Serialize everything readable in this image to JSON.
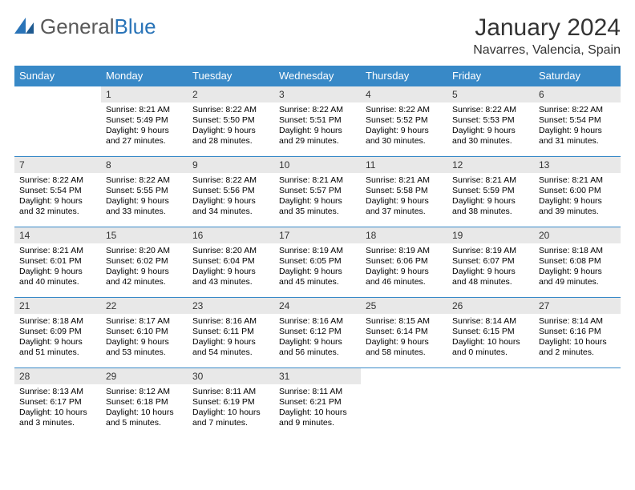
{
  "brand": {
    "part1": "General",
    "part2": "Blue"
  },
  "title": "January 2024",
  "location": "Navarres, Valencia, Spain",
  "header_bg": "#3889c7",
  "daynum_bg": "#e8e8e8",
  "border_color": "#3889c7",
  "weekdays": [
    "Sunday",
    "Monday",
    "Tuesday",
    "Wednesday",
    "Thursday",
    "Friday",
    "Saturday"
  ],
  "weeks": [
    [
      {
        "n": "",
        "sr": "",
        "ss": "",
        "dl": ""
      },
      {
        "n": "1",
        "sr": "Sunrise: 8:21 AM",
        "ss": "Sunset: 5:49 PM",
        "dl": "Daylight: 9 hours and 27 minutes."
      },
      {
        "n": "2",
        "sr": "Sunrise: 8:22 AM",
        "ss": "Sunset: 5:50 PM",
        "dl": "Daylight: 9 hours and 28 minutes."
      },
      {
        "n": "3",
        "sr": "Sunrise: 8:22 AM",
        "ss": "Sunset: 5:51 PM",
        "dl": "Daylight: 9 hours and 29 minutes."
      },
      {
        "n": "4",
        "sr": "Sunrise: 8:22 AM",
        "ss": "Sunset: 5:52 PM",
        "dl": "Daylight: 9 hours and 30 minutes."
      },
      {
        "n": "5",
        "sr": "Sunrise: 8:22 AM",
        "ss": "Sunset: 5:53 PM",
        "dl": "Daylight: 9 hours and 30 minutes."
      },
      {
        "n": "6",
        "sr": "Sunrise: 8:22 AM",
        "ss": "Sunset: 5:54 PM",
        "dl": "Daylight: 9 hours and 31 minutes."
      }
    ],
    [
      {
        "n": "7",
        "sr": "Sunrise: 8:22 AM",
        "ss": "Sunset: 5:54 PM",
        "dl": "Daylight: 9 hours and 32 minutes."
      },
      {
        "n": "8",
        "sr": "Sunrise: 8:22 AM",
        "ss": "Sunset: 5:55 PM",
        "dl": "Daylight: 9 hours and 33 minutes."
      },
      {
        "n": "9",
        "sr": "Sunrise: 8:22 AM",
        "ss": "Sunset: 5:56 PM",
        "dl": "Daylight: 9 hours and 34 minutes."
      },
      {
        "n": "10",
        "sr": "Sunrise: 8:21 AM",
        "ss": "Sunset: 5:57 PM",
        "dl": "Daylight: 9 hours and 35 minutes."
      },
      {
        "n": "11",
        "sr": "Sunrise: 8:21 AM",
        "ss": "Sunset: 5:58 PM",
        "dl": "Daylight: 9 hours and 37 minutes."
      },
      {
        "n": "12",
        "sr": "Sunrise: 8:21 AM",
        "ss": "Sunset: 5:59 PM",
        "dl": "Daylight: 9 hours and 38 minutes."
      },
      {
        "n": "13",
        "sr": "Sunrise: 8:21 AM",
        "ss": "Sunset: 6:00 PM",
        "dl": "Daylight: 9 hours and 39 minutes."
      }
    ],
    [
      {
        "n": "14",
        "sr": "Sunrise: 8:21 AM",
        "ss": "Sunset: 6:01 PM",
        "dl": "Daylight: 9 hours and 40 minutes."
      },
      {
        "n": "15",
        "sr": "Sunrise: 8:20 AM",
        "ss": "Sunset: 6:02 PM",
        "dl": "Daylight: 9 hours and 42 minutes."
      },
      {
        "n": "16",
        "sr": "Sunrise: 8:20 AM",
        "ss": "Sunset: 6:04 PM",
        "dl": "Daylight: 9 hours and 43 minutes."
      },
      {
        "n": "17",
        "sr": "Sunrise: 8:19 AM",
        "ss": "Sunset: 6:05 PM",
        "dl": "Daylight: 9 hours and 45 minutes."
      },
      {
        "n": "18",
        "sr": "Sunrise: 8:19 AM",
        "ss": "Sunset: 6:06 PM",
        "dl": "Daylight: 9 hours and 46 minutes."
      },
      {
        "n": "19",
        "sr": "Sunrise: 8:19 AM",
        "ss": "Sunset: 6:07 PM",
        "dl": "Daylight: 9 hours and 48 minutes."
      },
      {
        "n": "20",
        "sr": "Sunrise: 8:18 AM",
        "ss": "Sunset: 6:08 PM",
        "dl": "Daylight: 9 hours and 49 minutes."
      }
    ],
    [
      {
        "n": "21",
        "sr": "Sunrise: 8:18 AM",
        "ss": "Sunset: 6:09 PM",
        "dl": "Daylight: 9 hours and 51 minutes."
      },
      {
        "n": "22",
        "sr": "Sunrise: 8:17 AM",
        "ss": "Sunset: 6:10 PM",
        "dl": "Daylight: 9 hours and 53 minutes."
      },
      {
        "n": "23",
        "sr": "Sunrise: 8:16 AM",
        "ss": "Sunset: 6:11 PM",
        "dl": "Daylight: 9 hours and 54 minutes."
      },
      {
        "n": "24",
        "sr": "Sunrise: 8:16 AM",
        "ss": "Sunset: 6:12 PM",
        "dl": "Daylight: 9 hours and 56 minutes."
      },
      {
        "n": "25",
        "sr": "Sunrise: 8:15 AM",
        "ss": "Sunset: 6:14 PM",
        "dl": "Daylight: 9 hours and 58 minutes."
      },
      {
        "n": "26",
        "sr": "Sunrise: 8:14 AM",
        "ss": "Sunset: 6:15 PM",
        "dl": "Daylight: 10 hours and 0 minutes."
      },
      {
        "n": "27",
        "sr": "Sunrise: 8:14 AM",
        "ss": "Sunset: 6:16 PM",
        "dl": "Daylight: 10 hours and 2 minutes."
      }
    ],
    [
      {
        "n": "28",
        "sr": "Sunrise: 8:13 AM",
        "ss": "Sunset: 6:17 PM",
        "dl": "Daylight: 10 hours and 3 minutes."
      },
      {
        "n": "29",
        "sr": "Sunrise: 8:12 AM",
        "ss": "Sunset: 6:18 PM",
        "dl": "Daylight: 10 hours and 5 minutes."
      },
      {
        "n": "30",
        "sr": "Sunrise: 8:11 AM",
        "ss": "Sunset: 6:19 PM",
        "dl": "Daylight: 10 hours and 7 minutes."
      },
      {
        "n": "31",
        "sr": "Sunrise: 8:11 AM",
        "ss": "Sunset: 6:21 PM",
        "dl": "Daylight: 10 hours and 9 minutes."
      },
      {
        "n": "",
        "sr": "",
        "ss": "",
        "dl": ""
      },
      {
        "n": "",
        "sr": "",
        "ss": "",
        "dl": ""
      },
      {
        "n": "",
        "sr": "",
        "ss": "",
        "dl": ""
      }
    ]
  ]
}
